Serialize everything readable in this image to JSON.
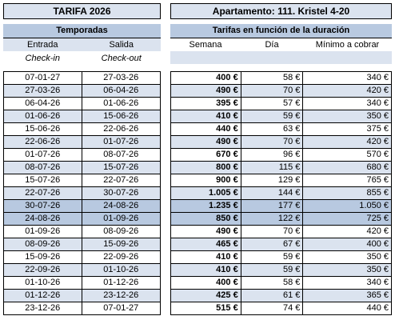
{
  "tariff_title": "TARIFA 2026",
  "apartment_title": "Apartamento: 111. Kristel 4-20",
  "seasons_header": {
    "title": "Temporadas",
    "col_entrada": "Entrada",
    "col_salida": "Salida",
    "sub_checkin": "Check-in",
    "sub_checkout": "Check-out"
  },
  "rates_header": {
    "title": "Tarifas en función de la duración",
    "col_semana": "Semana",
    "col_dia": "Día",
    "col_minimo": "Mínimo a cobrar"
  },
  "rows": [
    {
      "entrada": "07-01-27",
      "salida": "27-03-26",
      "semana": "400 €",
      "dia": "58 €",
      "minimo": "340 €"
    },
    {
      "entrada": "27-03-26",
      "salida": "06-04-26",
      "semana": "490 €",
      "dia": "70 €",
      "minimo": "420 €"
    },
    {
      "entrada": "06-04-26",
      "salida": "01-06-26",
      "semana": "395 €",
      "dia": "57 €",
      "minimo": "340 €"
    },
    {
      "entrada": "01-06-26",
      "salida": "15-06-26",
      "semana": "410 €",
      "dia": "59 €",
      "minimo": "350 €"
    },
    {
      "entrada": "15-06-26",
      "salida": "22-06-26",
      "semana": "440 €",
      "dia": "63 €",
      "minimo": "375 €"
    },
    {
      "entrada": "22-06-26",
      "salida": "01-07-26",
      "semana": "490 €",
      "dia": "70 €",
      "minimo": "420 €"
    },
    {
      "entrada": "01-07-26",
      "salida": "08-07-26",
      "semana": "670 €",
      "dia": "96 €",
      "minimo": "570 €"
    },
    {
      "entrada": "08-07-26",
      "salida": "15-07-26",
      "semana": "800 €",
      "dia": "115 €",
      "minimo": "680 €"
    },
    {
      "entrada": "15-07-26",
      "salida": "22-07-26",
      "semana": "900 €",
      "dia": "129 €",
      "minimo": "765 €"
    },
    {
      "entrada": "22-07-26",
      "salida": "30-07-26",
      "semana": "1.005 €",
      "dia": "144 €",
      "minimo": "855 €"
    },
    {
      "entrada": "30-07-26",
      "salida": "24-08-26",
      "semana": "1.235 €",
      "dia": "177 €",
      "minimo": "1.050 €"
    },
    {
      "entrada": "24-08-26",
      "salida": "01-09-26",
      "semana": "850 €",
      "dia": "122 €",
      "minimo": "725 €"
    },
    {
      "entrada": "01-09-26",
      "salida": "08-09-26",
      "semana": "490 €",
      "dia": "70 €",
      "minimo": "420 €"
    },
    {
      "entrada": "08-09-26",
      "salida": "15-09-26",
      "semana": "465 €",
      "dia": "67 €",
      "minimo": "400 €"
    },
    {
      "entrada": "15-09-26",
      "salida": "22-09-26",
      "semana": "410 €",
      "dia": "59 €",
      "minimo": "350 €"
    },
    {
      "entrada": "22-09-26",
      "salida": "01-10-26",
      "semana": "410 €",
      "dia": "59 €",
      "minimo": "350 €"
    },
    {
      "entrada": "01-10-26",
      "salida": "01-12-26",
      "semana": "400 €",
      "dia": "58 €",
      "minimo": "340 €"
    },
    {
      "entrada": "01-12-26",
      "salida": "23-12-26",
      "semana": "425 €",
      "dia": "61 €",
      "minimo": "365 €"
    },
    {
      "entrada": "23-12-26",
      "salida": "07-01-27",
      "semana": "515 €",
      "dia": "74 €",
      "minimo": "440 €"
    }
  ],
  "highlight_rows": [
    10,
    11
  ]
}
